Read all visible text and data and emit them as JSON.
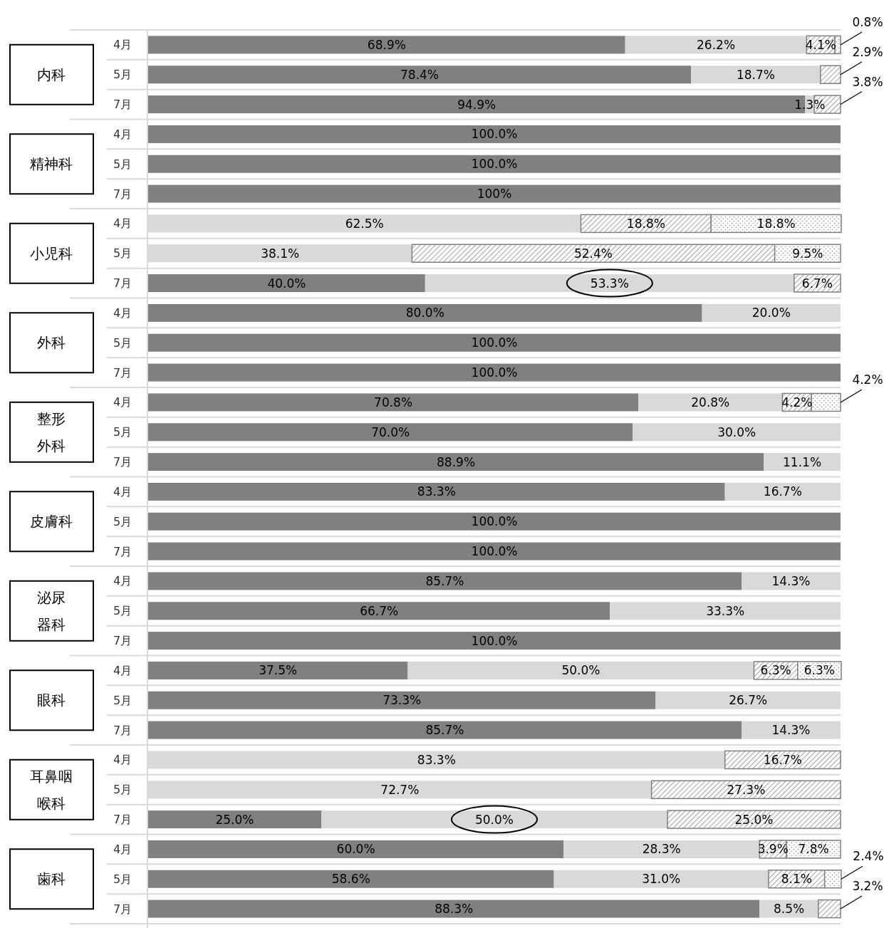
{
  "chart_data": {
    "type": "bar",
    "orientation": "horizontal",
    "stacked": true,
    "xlim": [
      0,
      100
    ],
    "tick_labels": "y",
    "categories": [
      "4月",
      "5月",
      "7月",
      "4月",
      "5月",
      "7月",
      "4月",
      "5月",
      "7月",
      "4月",
      "5月",
      "7月",
      "4月",
      "5月",
      "7月",
      "4月",
      "5月",
      "7月",
      "4月",
      "5月",
      "7月",
      "4月",
      "5月",
      "7月",
      "4月",
      "5月",
      "7月",
      "4月",
      "5月",
      "7月"
    ],
    "annotations": [
      "内科",
      "精神科",
      "小児科",
      "外科",
      "整形外科",
      "皮膚科",
      "泌尿器科",
      "眼科",
      "耳鼻咽喉科",
      "歯科"
    ],
    "series": [
      {
        "color": "#808080",
        "values": [
          68.9,
          78.4,
          94.9,
          100,
          100,
          100,
          null,
          null,
          40.0,
          80.0,
          100,
          100,
          70.8,
          70.0,
          88.9,
          83.3,
          100,
          100,
          85.7,
          66.7,
          100,
          37.5,
          73.3,
          85.7,
          null,
          null,
          25.0,
          60.0,
          58.6,
          88.3
        ],
        "value_labels": [
          "68.9%",
          "78.4%",
          "94.9%",
          "100.0%",
          "100.0%",
          "100%",
          null,
          null,
          "40.0%",
          "80.0%",
          "100.0%",
          "100.0%",
          "70.8%",
          "70.0%",
          "88.9%",
          "83.3%",
          "100.0%",
          "100.0%",
          "85.7%",
          "66.7%",
          "100.0%",
          "37.5%",
          "73.3%",
          "85.7%",
          null,
          null,
          "25.0%",
          "60.0%",
          "58.6%",
          "88.3%"
        ]
      },
      {
        "color": "#d9d9d9",
        "values": [
          26.2,
          18.7,
          1.3,
          null,
          null,
          null,
          62.5,
          38.1,
          53.3,
          20.0,
          null,
          null,
          20.8,
          30.0,
          11.1,
          16.7,
          null,
          null,
          14.3,
          33.3,
          null,
          50.0,
          26.7,
          14.3,
          83.3,
          72.7,
          50.0,
          28.3,
          31.0,
          8.5
        ],
        "value_labels": [
          "26.2%",
          "18.7%",
          "1.3%",
          null,
          null,
          null,
          "62.5%",
          "38.1%",
          "53.3%",
          "20.0%",
          null,
          null,
          "20.8%",
          "30.0%",
          "11.1%",
          "16.7%",
          null,
          null,
          "14.3%",
          "33.3%",
          null,
          "50.0%",
          "26.7%",
          "14.3%",
          "83.3%",
          "72.7%",
          "50.0%",
          "28.3%",
          "31.0%",
          "8.5%"
        ]
      },
      {
        "color": "#7f7f7f",
        "values": [
          4.1,
          2.9,
          3.8,
          null,
          null,
          null,
          18.8,
          52.4,
          6.7,
          null,
          null,
          null,
          4.2,
          null,
          null,
          null,
          null,
          null,
          null,
          null,
          null,
          6.3,
          null,
          null,
          16.7,
          27.3,
          25.0,
          3.9,
          8.1,
          3.2
        ],
        "value_labels": [
          "4.1%",
          "2.9%",
          "3.8%",
          null,
          null,
          null,
          "18.8%",
          "52.4%",
          "6.7%",
          null,
          null,
          null,
          "4.2%",
          null,
          null,
          null,
          null,
          null,
          null,
          null,
          null,
          "6.3%",
          null,
          null,
          "16.7%",
          "27.3%",
          "25.0%",
          "3.9%",
          "8.1%",
          "3.2%"
        ]
      },
      {
        "color": "#808080",
        "values": [
          0.8,
          null,
          null,
          null,
          null,
          null,
          18.8,
          9.5,
          null,
          null,
          null,
          null,
          4.2,
          null,
          null,
          null,
          null,
          null,
          null,
          null,
          null,
          6.3,
          null,
          null,
          null,
          null,
          null,
          7.8,
          2.4,
          null
        ],
        "value_labels": [
          "0.8%",
          null,
          null,
          null,
          null,
          null,
          "18.8%",
          "9.5%",
          null,
          null,
          null,
          null,
          "4.2%",
          null,
          null,
          null,
          null,
          null,
          null,
          null,
          null,
          "6.3%",
          null,
          null,
          null,
          null,
          null,
          "7.8%",
          "2.4%",
          null
        ]
      }
    ]
  }
}
